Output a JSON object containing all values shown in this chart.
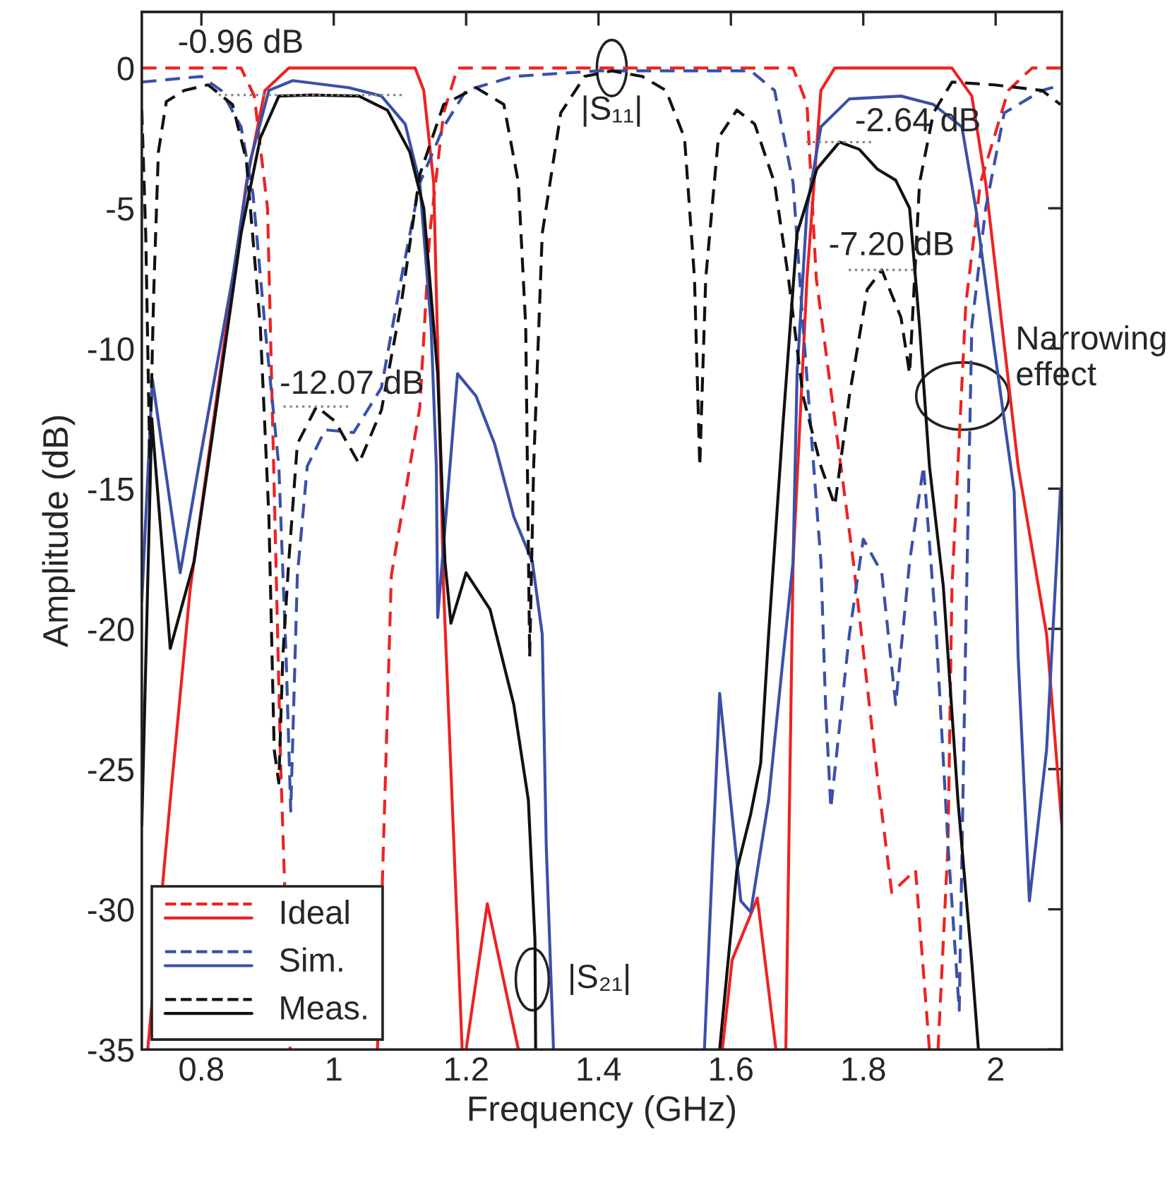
{
  "chart_data": {
    "type": "line",
    "xlabel": "Frequency (GHz)",
    "ylabel": "Amplitude (dB)",
    "xlim": [
      0.71,
      2.1
    ],
    "ylim": [
      -35,
      2
    ],
    "xticks": [
      0.8,
      1,
      1.2,
      1.4,
      1.6,
      1.8,
      2
    ],
    "yticks": [
      -35,
      -30,
      -25,
      -20,
      -15,
      -10,
      -5,
      0
    ],
    "grid": false,
    "legend": "bottom left",
    "marker": "none",
    "series": [
      {
        "name": "Ideal",
        "color": "#ee2222",
        "line_style": "dashed",
        "x": [
          0.71,
          0.86,
          0.88,
          0.9,
          0.91,
          0.92,
          0.934,
          1.0,
          1.066,
          1.087,
          1.13,
          1.145,
          1.166,
          1.187,
          1.5,
          1.694,
          1.715,
          1.729,
          1.785,
          1.821,
          1.843,
          1.879,
          1.9,
          1.906,
          1.913,
          1.928,
          1.934,
          1.955,
          1.977,
          2.019,
          2.055,
          2.1
        ],
        "values": [
          0,
          0,
          -1,
          -5,
          -15,
          -25,
          -35,
          null,
          -35,
          -18.1,
          -12.1,
          -5.9,
          -1.6,
          0,
          0,
          0,
          -1.3,
          -7.5,
          -17.6,
          -25.2,
          -29.4,
          -28.6,
          -35,
          null,
          -35,
          -27.7,
          -18.5,
          -8.4,
          -4.1,
          -0.8,
          0,
          0
        ]
      },
      {
        "color": "#ee2222",
        "line_style": "solid",
        "x": [
          0.719,
          0.753,
          0.783,
          0.868,
          0.896,
          0.932,
          1.123,
          1.136,
          1.151,
          1.166,
          1.194,
          1.197,
          1.2,
          1.232,
          1.279,
          1.4,
          1.587,
          1.602,
          1.64,
          1.668,
          1.675,
          1.683,
          1.694,
          1.715,
          1.736,
          1.757,
          1.934,
          1.964,
          1.985,
          2.034,
          2.077,
          2.1
        ],
        "values": [
          -35,
          -26.1,
          -18.6,
          -4.1,
          -0.8,
          0,
          0,
          -0.8,
          -4.1,
          -18.6,
          -35,
          null,
          -35,
          -29.8,
          -35,
          null,
          -35,
          -31.8,
          -29.6,
          -35,
          null,
          -35,
          -17.6,
          -7.5,
          -0.8,
          0,
          0,
          -1.0,
          -4.1,
          -14.2,
          -20.2,
          -27
        ]
      },
      {
        "name": "Sim.",
        "color": "#3a50a8",
        "line_style": "dashed",
        "x": [
          0.71,
          0.8,
          0.83,
          0.86,
          0.878,
          0.896,
          0.917,
          0.928,
          0.935,
          0.945,
          0.96,
          0.987,
          1.03,
          1.072,
          1.102,
          1.13,
          1.166,
          1.2,
          1.272,
          1.4,
          1.63,
          1.666,
          1.694,
          1.709,
          1.736,
          1.743,
          1.751,
          1.779,
          1.8,
          1.828,
          1.849,
          1.87,
          1.891,
          1.91,
          1.928,
          1.945,
          1.955,
          1.964,
          1.985,
          2.013,
          2.07,
          2.1
        ],
        "values": [
          -0.5,
          -0.3,
          -0.8,
          -2.1,
          -4.5,
          -9.2,
          -14.2,
          -21,
          -26.5,
          -18.1,
          -14.2,
          -12.9,
          -13.0,
          -11.4,
          -7.5,
          -4.1,
          -2.1,
          -0.8,
          -0.3,
          -0.1,
          -0.1,
          -0.8,
          -4.1,
          -9.2,
          -17.6,
          -22.7,
          -26.4,
          -20.2,
          -16.8,
          -18,
          -22.7,
          -17.6,
          -14.2,
          -20,
          -27.7,
          -33.6,
          -20,
          -9.2,
          -5,
          -1.6,
          -0.8,
          -0.6
        ]
      },
      {
        "color": "#3a50a8",
        "line_style": "solid",
        "x": [
          0.71,
          0.726,
          0.768,
          0.796,
          0.847,
          0.874,
          0.902,
          0.938,
          1.023,
          1.072,
          1.108,
          1.13,
          1.147,
          1.155,
          1.157,
          1.187,
          1.215,
          1.243,
          1.272,
          1.3,
          1.315,
          1.321,
          1.332,
          1.45,
          1.56,
          1.583,
          1.615,
          1.63,
          1.657,
          1.679,
          1.694,
          1.7,
          1.715,
          1.736,
          1.779,
          1.857,
          1.906,
          1.949,
          1.97,
          1.998,
          2.028,
          2.034,
          2.051,
          2.077,
          2.098
        ],
        "values": [
          -19,
          -11.1,
          -18,
          -14.2,
          -7.5,
          -3.3,
          -0.8,
          -0.45,
          -0.7,
          -1.0,
          -2.0,
          -4.1,
          -9.2,
          -14.2,
          -19.6,
          -10.9,
          -11.7,
          -13.4,
          -16,
          -17.6,
          -20.2,
          -27.7,
          -35,
          null,
          -35,
          -22.3,
          -29.7,
          -30.1,
          -26.1,
          -21,
          -17.6,
          -10.9,
          -5,
          -2.1,
          -1.1,
          -1.0,
          -1.3,
          -2.1,
          -5,
          -10,
          -15.1,
          -21,
          -29.7,
          -24.3,
          -15
        ]
      },
      {
        "name": "Meas.",
        "color": "#111111",
        "line_style": "dashed",
        "x": [
          0.71,
          0.716,
          0.722,
          0.728,
          0.735,
          0.747,
          0.774,
          0.81,
          0.847,
          0.868,
          0.889,
          0.902,
          0.91,
          0.917,
          0.923,
          0.932,
          0.945,
          0.974,
          1.002,
          1.038,
          1.072,
          1.102,
          1.13,
          1.166,
          1.215,
          1.257,
          1.279,
          1.29,
          1.296,
          1.302,
          1.315,
          1.343,
          1.379,
          1.42,
          1.466,
          1.502,
          1.53,
          1.545,
          1.553,
          1.562,
          1.581,
          1.609,
          1.636,
          1.666,
          1.687,
          1.709,
          1.736,
          1.757,
          1.779,
          1.806,
          1.828,
          1.857,
          1.87,
          1.885,
          1.906,
          1.934,
          1.998,
          2.07,
          2.098
        ],
        "values": [
          -1.5,
          -6,
          -14,
          -8,
          -3,
          -1.2,
          -0.8,
          -0.6,
          -1.3,
          -3.3,
          -9.2,
          -16,
          -24.3,
          -25.5,
          -21,
          -17.6,
          -13.4,
          -12.07,
          -12.6,
          -14.1,
          -12.2,
          -8.4,
          -3.8,
          -1.3,
          -0.7,
          -1.3,
          -4.1,
          -9.2,
          -21,
          -14.2,
          -5.9,
          -1.6,
          -0.3,
          -0.1,
          -0.3,
          -0.8,
          -2.5,
          -7.5,
          -14.2,
          -7.5,
          -2.5,
          -1.5,
          -2,
          -4.1,
          -7.5,
          -11.7,
          -14.2,
          -15.6,
          -11.7,
          -7.9,
          -7.2,
          -8.9,
          -10.9,
          -4.1,
          -1.6,
          -0.5,
          -0.6,
          -0.8,
          -1.3
        ]
      },
      {
        "color": "#111111",
        "line_style": "solid",
        "x": [
          0.71,
          0.725,
          0.753,
          0.789,
          0.81,
          0.86,
          0.889,
          0.917,
          0.966,
          1.038,
          1.081,
          1.115,
          1.136,
          1.157,
          1.168,
          1.177,
          1.2,
          1.236,
          1.272,
          1.294,
          1.304,
          1.305,
          1.45,
          1.583,
          1.609,
          1.63,
          1.645,
          1.657,
          1.679,
          1.7,
          1.73,
          1.764,
          1.794,
          1.821,
          1.849,
          1.87,
          1.885,
          1.9,
          1.921,
          1.943,
          1.964,
          1.974
        ],
        "values": [
          -27,
          -12.5,
          -20.7,
          -17.6,
          -14.2,
          -5.9,
          -2.5,
          -1.0,
          -0.96,
          -1.0,
          -1.5,
          -3,
          -5,
          -10.9,
          -17.6,
          -19.8,
          -18,
          -19.3,
          -22.7,
          -26.1,
          -31.1,
          -35,
          null,
          -35,
          -28.6,
          -26.6,
          -24.8,
          -20.2,
          -12.6,
          -5.9,
          -3.6,
          -2.64,
          -2.9,
          -3.6,
          -4,
          -5,
          -9.2,
          -14.2,
          -18.5,
          -26.1,
          -31.9,
          -35
        ]
      }
    ],
    "annotations": [
      {
        "text": "-0.96 dB",
        "x": 0.966,
        "y": -0.96
      },
      {
        "text": "-12.07 dB",
        "x": 0.974,
        "y": -12.07
      },
      {
        "text": "-2.64 dB",
        "x": 1.764,
        "y": -2.64
      },
      {
        "text": "-7.20 dB",
        "x": 1.828,
        "y": -7.2
      },
      {
        "text": "|S₁₁|",
        "x": 1.42,
        "y": 0
      },
      {
        "text": "|S₂₁|",
        "x": 1.3,
        "y": -32.5
      },
      {
        "text": "Narrowing\neffect",
        "x": 1.95,
        "y": -11.7
      }
    ]
  }
}
